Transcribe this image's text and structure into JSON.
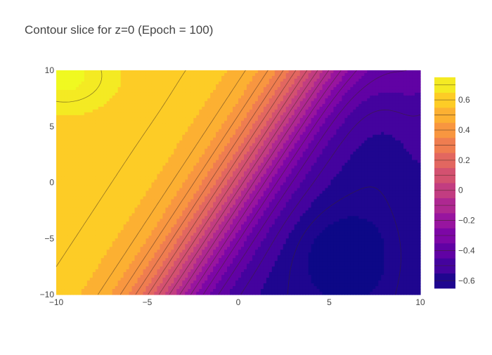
{
  "chart_data": {
    "type": "contour",
    "title": "Contour slice for z=0 (Epoch = 100)",
    "xlabel": "",
    "ylabel": "",
    "xlim": [
      -10,
      10
    ],
    "ylim": [
      -10,
      10
    ],
    "x_ticks": [
      -10,
      -5,
      0,
      5,
      10
    ],
    "y_ticks": [
      -10,
      -5,
      0,
      5,
      10
    ],
    "x_tick_labels": [
      "−10",
      "−5",
      "0",
      "5",
      "10"
    ],
    "y_tick_labels": [
      "−10",
      "−5",
      "0",
      "5",
      "10"
    ],
    "colorbar": {
      "range": [
        -0.65,
        0.75
      ],
      "contour_step": 0.1,
      "ticks": [
        0.6,
        0.4,
        0.2,
        0,
        -0.2,
        -0.4,
        -0.6
      ],
      "tick_labels": [
        "0.6",
        "0.4",
        "0.2",
        "0",
        "−0.2",
        "−0.4",
        "−0.6"
      ],
      "colorscale": [
        "#0d0887",
        "#46039f",
        "#7201a8",
        "#9c179e",
        "#bd3786",
        "#d8576b",
        "#ed7953",
        "#fb9f3a",
        "#fdca26",
        "#f0f921"
      ],
      "position": "right"
    },
    "field": {
      "description_units": "value at (x, y)",
      "sample_points": [
        {
          "x": -10,
          "y": 10,
          "value": 0.72
        },
        {
          "x": -10,
          "y": 0,
          "value": 0.62
        },
        {
          "x": -10,
          "y": -10,
          "value": 0.55
        },
        {
          "x": -5,
          "y": 0,
          "value": 0.52
        },
        {
          "x": -3,
          "y": -8,
          "value": 0.45
        },
        {
          "x": 0,
          "y": -8,
          "value": 0.4
        },
        {
          "x": 0,
          "y": 5,
          "value": -0.15
        },
        {
          "x": 3,
          "y": 8,
          "value": -0.3
        },
        {
          "x": 3,
          "y": 3,
          "value": -0.4
        },
        {
          "x": 5,
          "y": -3,
          "value": -0.5
        },
        {
          "x": 6,
          "y": -7,
          "value": -0.58
        },
        {
          "x": 10,
          "y": 0,
          "value": -0.3
        },
        {
          "x": 10,
          "y": -10,
          "value": -0.4
        }
      ]
    },
    "grid": false
  }
}
